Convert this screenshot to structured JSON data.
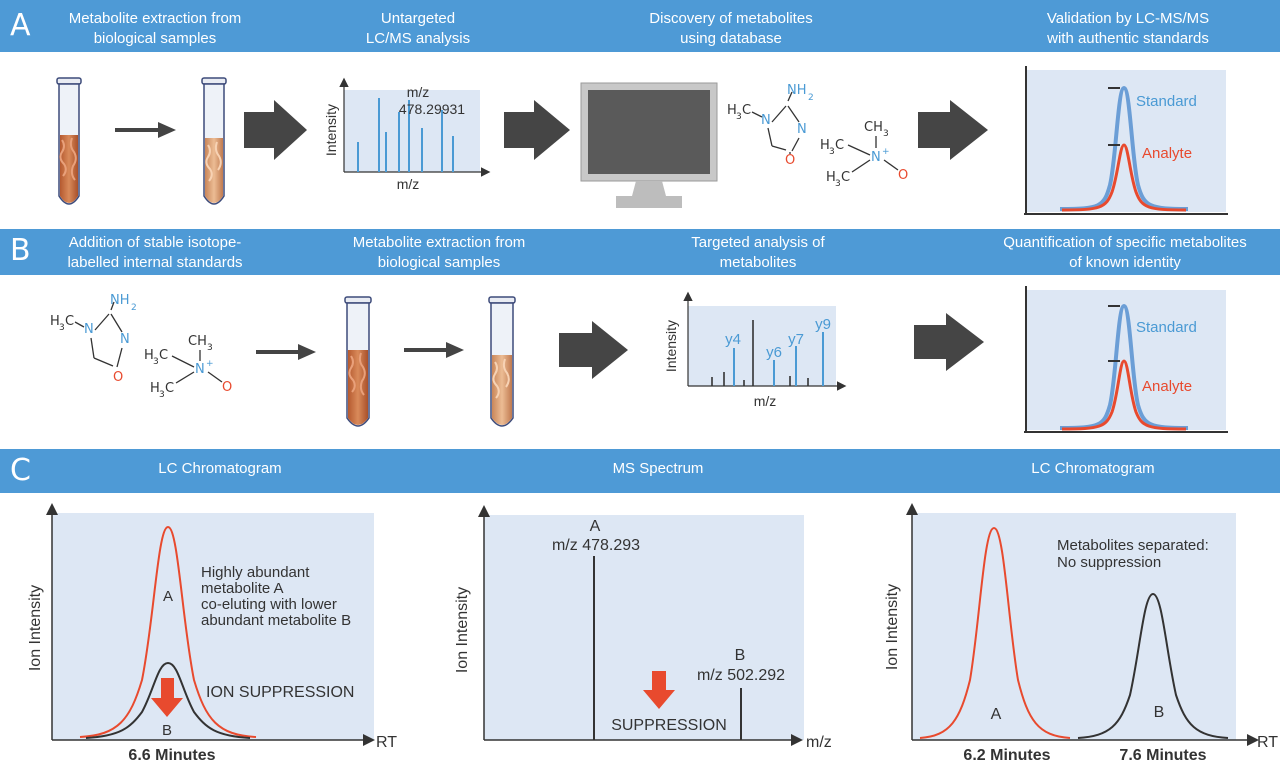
{
  "colors": {
    "band": "#4e9ad6",
    "blue": "#4a9ad4",
    "red": "#e84a2e",
    "panel": "#dde7f4",
    "arrow": "#444444",
    "tube_fill": "#c8643a"
  },
  "section_a": {
    "letter": "A",
    "headers": [
      [
        "Metabolite extraction from",
        "biological samples"
      ],
      [
        "Untargeted",
        "LC/MS analysis"
      ],
      [
        "Discovery of metabolites",
        "using database"
      ],
      [
        "Validation by LC-MS/MS",
        "with authentic standards"
      ]
    ],
    "spectrum": {
      "xlabel": "m/z",
      "ylabel": "Intensity",
      "peak_mz": "m/z",
      "peak_value": "478.29931"
    },
    "validation": {
      "standard": "Standard",
      "analyte": "Analyte"
    }
  },
  "section_b": {
    "letter": "B",
    "headers": [
      [
        "Addition of stable isotope-",
        "labelled internal standards"
      ],
      [
        "Metabolite extraction from",
        "biological samples"
      ],
      [
        "Targeted analysis of",
        "metabolites"
      ],
      [
        "Quantification of specific metabolites",
        "of known identity"
      ]
    ],
    "spectrum": {
      "xlabel": "m/z",
      "ylabel": "Intensity",
      "ions": [
        "y4",
        "y6",
        "y7",
        "y9"
      ]
    },
    "validation": {
      "standard": "Standard",
      "analyte": "Analyte"
    }
  },
  "molecules": {
    "creatinine": {
      "nh2": "NH",
      "sub2": "2",
      "ch3": "H",
      "sub3": "3",
      "c": "C",
      "n": "N",
      "o": "O"
    },
    "tmao": {
      "ch3": "CH",
      "sub3": "3",
      "h3c": "H",
      "c": "C",
      "n": "N",
      "plus": "+",
      "o": "O"
    }
  },
  "section_c": {
    "letter": "C",
    "titles": [
      "LC Chromatogram",
      "MS Spectrum",
      "LC Chromatogram"
    ],
    "panel1": {
      "ylabel": "Ion Intensity",
      "xlabel": "RT",
      "time": "6.6 Minutes",
      "peak_a": "A",
      "peak_b": "B",
      "note": [
        "Highly abundant",
        "metabolite A",
        "co-eluting with lower",
        "abundant metabolite B"
      ],
      "suppression": "ION SUPPRESSION"
    },
    "panel2": {
      "ylabel": "Ion Intensity",
      "xlabel": "m/z",
      "peak_a_label": "A",
      "peak_a_mz": "m/z 478.293",
      "peak_b_label": "B",
      "peak_b_mz": "m/z 502.292",
      "suppression": "SUPPRESSION"
    },
    "panel3": {
      "ylabel": "Ion Intensity",
      "xlabel": "RT",
      "peak_a": "A",
      "peak_b": "B",
      "time_a": "6.2 Minutes",
      "time_b": "7.6 Minutes",
      "note": [
        "Metabolites separated:",
        "No suppression"
      ]
    }
  }
}
